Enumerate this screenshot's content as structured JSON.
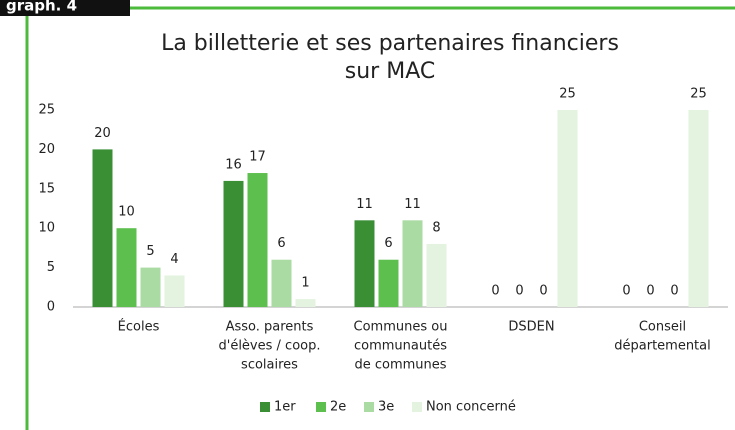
{
  "label": "graph. 4",
  "chart_data": {
    "type": "bar",
    "title": [
      "La billetterie et ses partenaires financiers",
      "sur MAC"
    ],
    "categories": [
      [
        "Écoles"
      ],
      [
        "Asso. parents",
        "d'élèves / coop.",
        "scolaires"
      ],
      [
        "Communes ou",
        "communautés",
        "de communes"
      ],
      [
        "DSDEN"
      ],
      [
        "Conseil",
        "départemental"
      ]
    ],
    "series": [
      {
        "name": "1er",
        "color": "#3a8f35",
        "values": [
          20,
          16,
          11,
          0,
          0
        ]
      },
      {
        "name": "2e",
        "color": "#5dbf4e",
        "values": [
          10,
          17,
          6,
          0,
          0
        ]
      },
      {
        "name": "3e",
        "color": "#aadba2",
        "values": [
          5,
          6,
          11,
          0,
          0
        ]
      },
      {
        "name": "Non concerné",
        "color": "#e3f3df",
        "values": [
          4,
          1,
          8,
          25,
          25
        ]
      }
    ],
    "ylim": [
      0,
      25
    ],
    "yticks": [
      0,
      5,
      10,
      15,
      20,
      25
    ],
    "grid": false,
    "legend": "bottom"
  }
}
